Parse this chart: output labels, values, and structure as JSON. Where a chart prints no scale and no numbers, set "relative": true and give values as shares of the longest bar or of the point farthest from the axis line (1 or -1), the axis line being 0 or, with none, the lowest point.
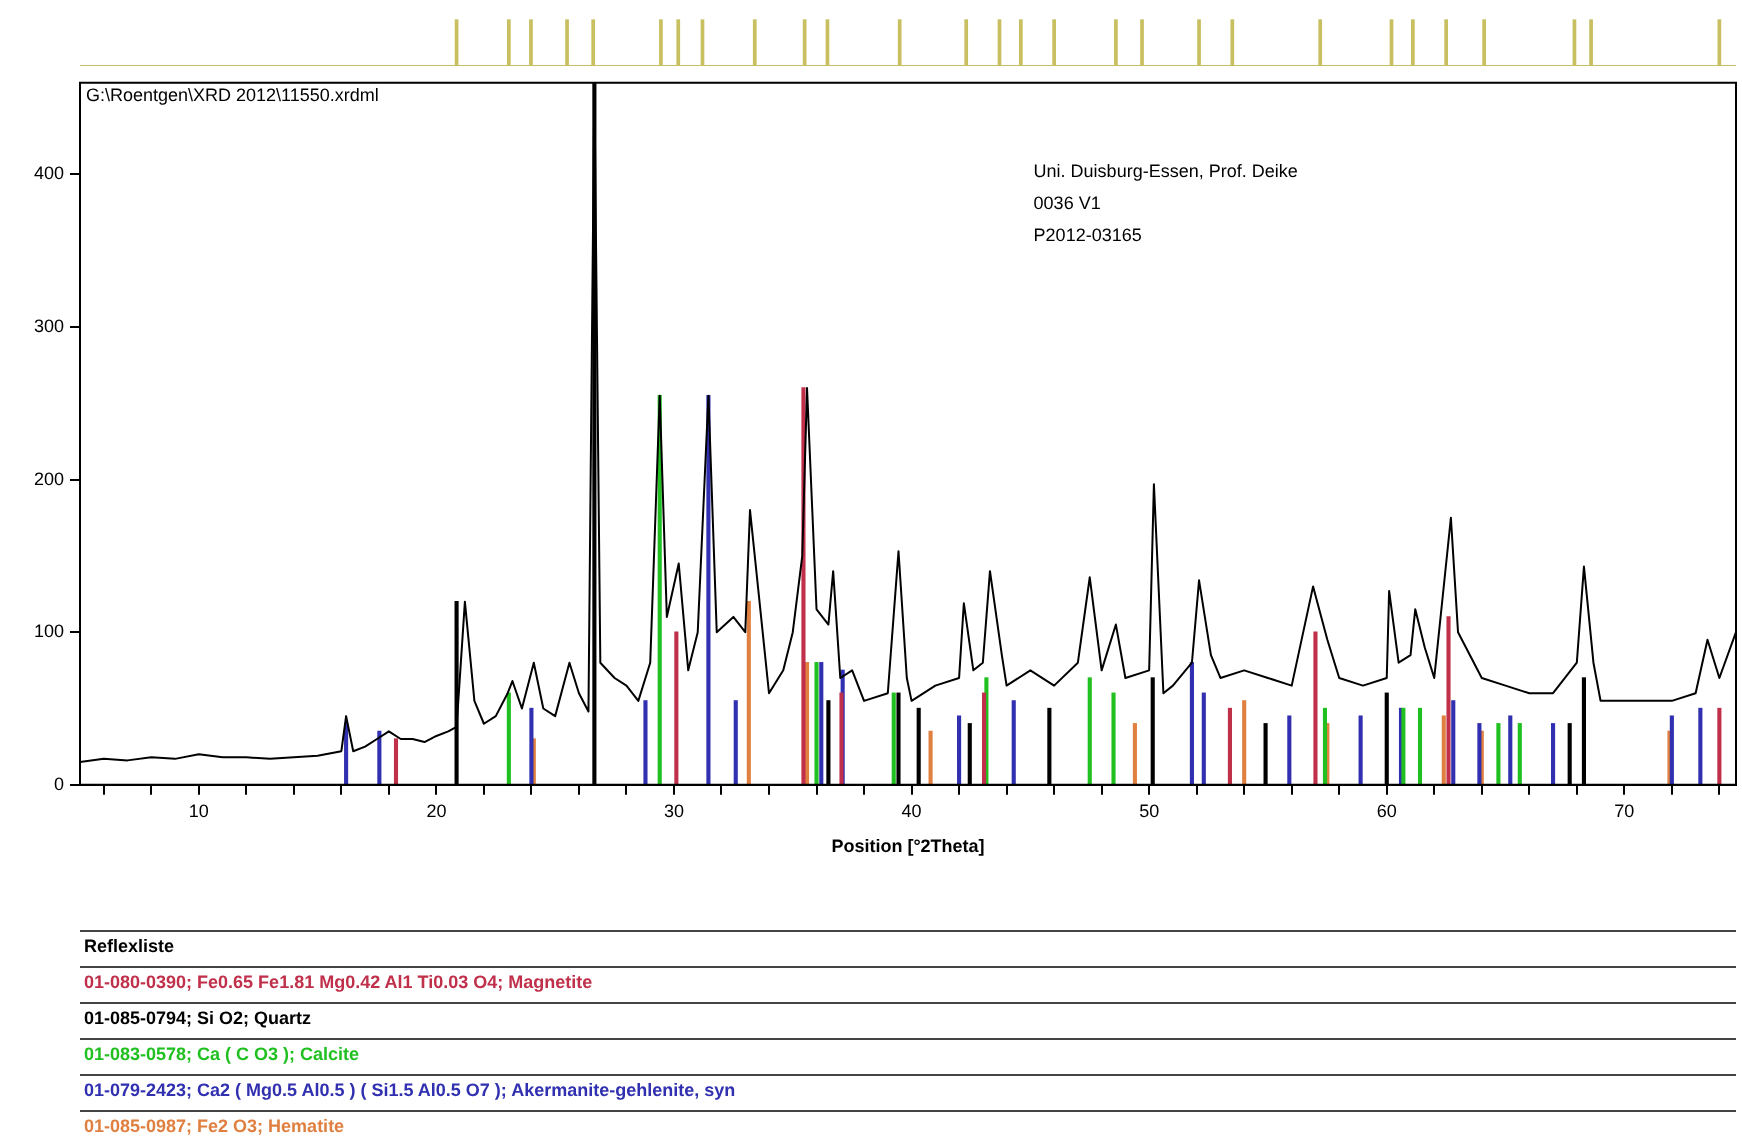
{
  "chart_data": [
    {
      "type": "line",
      "xlabel": "Position [°2Theta]",
      "legend_title": "Reflexliste",
      "legend": "bottom",
      "grid": false,
      "marker": "none",
      "annotations": [
        "G:\\Roentgen\\XRD 2012\\11550.xrdml",
        "Uni. Duisburg-Essen, Prof. Deike",
        "0036 V1",
        "P2012-03165"
      ],
      "xlim": [
        5,
        74.7
      ],
      "ylim": [
        0,
        460
      ],
      "xticks": [
        {
          "value": 6,
          "label": null
        },
        {
          "value": 8,
          "label": null
        },
        10,
        {
          "value": 12,
          "label": null
        },
        {
          "value": 14,
          "label": null
        },
        {
          "value": 16,
          "label": null
        },
        {
          "value": 18,
          "label": null
        },
        20,
        {
          "value": 22,
          "label": null
        },
        {
          "value": 24,
          "label": null
        },
        {
          "value": 26,
          "label": null
        },
        {
          "value": 28,
          "label": null
        },
        30,
        {
          "value": 32,
          "label": null
        },
        {
          "value": 34,
          "label": null
        },
        {
          "value": 36,
          "label": null
        },
        {
          "value": 38,
          "label": null
        },
        40,
        {
          "value": 42,
          "label": null
        },
        {
          "value": 44,
          "label": null
        },
        {
          "value": 46,
          "label": null
        },
        {
          "value": 48,
          "label": null
        },
        50,
        {
          "value": 52,
          "label": null
        },
        {
          "value": 54,
          "label": null
        },
        {
          "value": 56,
          "label": null
        },
        {
          "value": 58,
          "label": null
        },
        60,
        {
          "value": 62,
          "label": null
        },
        {
          "value": 64,
          "label": null
        },
        {
          "value": 66,
          "label": null
        },
        {
          "value": 68,
          "label": null
        },
        70,
        {
          "value": 72,
          "label": null
        },
        {
          "value": 74,
          "label": null
        }
      ],
      "yticks": [
        0,
        100,
        200,
        300,
        400
      ],
      "series": [
        {
          "color": "#000000",
          "x": [
            5,
            6,
            7,
            8,
            9,
            10,
            11,
            12,
            13,
            14,
            15,
            16,
            16.2,
            16.5,
            17,
            17.5,
            18,
            18.5,
            19,
            19.5,
            20,
            20.5,
            20.85,
            21.2,
            21.6,
            22,
            22.5,
            23,
            23.2,
            23.6,
            24.1,
            24.5,
            25,
            25.6,
            26,
            26.4,
            26.65,
            26.9,
            27.5,
            28,
            28.5,
            29,
            29.4,
            29.7,
            30.2,
            30.6,
            31,
            31.45,
            31.8,
            32.5,
            33,
            33.2,
            33.6,
            34,
            34.6,
            35,
            35.4,
            35.6,
            36,
            36.5,
            36.7,
            37,
            37.5,
            38,
            39,
            39.45,
            39.8,
            40,
            41,
            42,
            42.2,
            42.6,
            43,
            43.3,
            43.8,
            44,
            45,
            46,
            47,
            47.5,
            48,
            48.6,
            49,
            50,
            50.2,
            50.6,
            51,
            51.8,
            52.1,
            52.6,
            53,
            54,
            55,
            56,
            56.9,
            57.5,
            58,
            59,
            60,
            60.1,
            60.5,
            61,
            61.2,
            61.6,
            62,
            62.7,
            63,
            64,
            65,
            66,
            67,
            68,
            68.3,
            68.7,
            69,
            70,
            71,
            72,
            73,
            73.5,
            74,
            74.7
          ],
          "values": [
            15,
            17,
            16,
            18,
            17,
            20,
            18,
            18,
            17,
            18,
            19,
            22,
            45,
            22,
            25,
            30,
            35,
            30,
            30,
            28,
            32,
            35,
            38,
            120,
            55,
            40,
            45,
            60,
            68,
            50,
            80,
            50,
            45,
            80,
            60,
            48,
            460,
            80,
            70,
            65,
            55,
            80,
            255,
            110,
            145,
            75,
            100,
            255,
            100,
            110,
            100,
            180,
            120,
            60,
            75,
            100,
            150,
            260,
            115,
            105,
            140,
            70,
            75,
            55,
            60,
            153,
            70,
            55,
            65,
            70,
            119,
            75,
            80,
            140,
            85,
            65,
            75,
            65,
            80,
            136,
            75,
            105,
            70,
            75,
            197,
            60,
            65,
            80,
            134,
            85,
            70,
            75,
            70,
            65,
            130,
            95,
            70,
            65,
            70,
            127,
            80,
            85,
            115,
            90,
            70,
            175,
            100,
            70,
            65,
            60,
            60,
            80,
            143,
            80,
            55,
            55,
            55,
            55,
            60,
            95,
            70,
            100
          ]
        },
        {
          "type": "bar",
          "name": "01-080-0390; Fe0.65 Fe1.81 Mg0.42 Al1 Ti0.03 O4; Magnetite",
          "color": "#c0304a",
          "x": [
            18.3,
            30.1,
            35.45,
            37.05,
            43.05,
            53.4,
            57.0,
            62.6,
            74.0
          ],
          "values": [
            30,
            100,
            260,
            60,
            60,
            50,
            100,
            110,
            50
          ]
        },
        {
          "type": "bar",
          "name": "01-085-0794; Si O2; Quartz",
          "color": "#000000",
          "x": [
            20.85,
            26.65,
            36.5,
            39.45,
            40.3,
            42.45,
            45.8,
            50.15,
            54.9,
            60.0,
            67.7,
            68.3
          ],
          "values": [
            120,
            460,
            55,
            60,
            50,
            40,
            50,
            70,
            40,
            60,
            40,
            70
          ]
        },
        {
          "type": "bar",
          "name": "01-083-0578; Ca ( C O3 ); Calcite",
          "color": "#20c020",
          "x": [
            23.05,
            29.4,
            36.0,
            39.25,
            43.15,
            47.5,
            48.5,
            57.4,
            60.7,
            61.4,
            64.7,
            65.6
          ],
          "values": [
            60,
            255,
            80,
            60,
            70,
            70,
            60,
            50,
            50,
            50,
            40,
            40
          ]
        },
        {
          "type": "bar",
          "name": "01-079-2423; Ca2 ( Mg0.5 Al0.5 ) ( Si1.5 Al0.5 O7 ); Akermanite-gehlenite, syn",
          "color": "#3030b0",
          "x": [
            16.2,
            17.6,
            24.0,
            28.8,
            31.45,
            32.6,
            36.2,
            37.1,
            42.0,
            44.3,
            51.8,
            52.3,
            55.9,
            58.9,
            60.6,
            62.8,
            63.9,
            65.2,
            67.0,
            72.0,
            73.2
          ],
          "values": [
            40,
            35,
            50,
            55,
            255,
            55,
            80,
            75,
            45,
            55,
            80,
            60,
            45,
            45,
            50,
            55,
            40,
            45,
            40,
            45,
            50
          ]
        },
        {
          "type": "bar",
          "name": "01-085-0987; Fe2 O3; Hematite",
          "color": "#e08040",
          "x": [
            24.1,
            33.15,
            35.6,
            40.8,
            49.4,
            54.0,
            57.5,
            62.4,
            64.0,
            71.9
          ],
          "values": [
            30,
            120,
            80,
            35,
            40,
            55,
            40,
            45,
            35,
            35
          ]
        }
      ]
    },
    {
      "type": "bar",
      "relative": true,
      "color": "#c8c060",
      "xlim": [
        5,
        74.7
      ],
      "x": [
        20.85,
        23.05,
        23.98,
        25.5,
        26.6,
        29.45,
        30.18,
        31.2,
        33.4,
        35.5,
        36.46,
        39.5,
        42.3,
        43.7,
        44.6,
        46.0,
        48.6,
        49.7,
        52.1,
        53.5,
        57.2,
        60.2,
        61.1,
        62.5,
        64.1,
        67.9,
        68.6,
        74.0
      ],
      "values": [
        1,
        1,
        1,
        1,
        1,
        1,
        1,
        1,
        1,
        1,
        1,
        1,
        1,
        1,
        1,
        1,
        1,
        1,
        1,
        1,
        1,
        1,
        1,
        1,
        1,
        1,
        1,
        1
      ]
    }
  ]
}
